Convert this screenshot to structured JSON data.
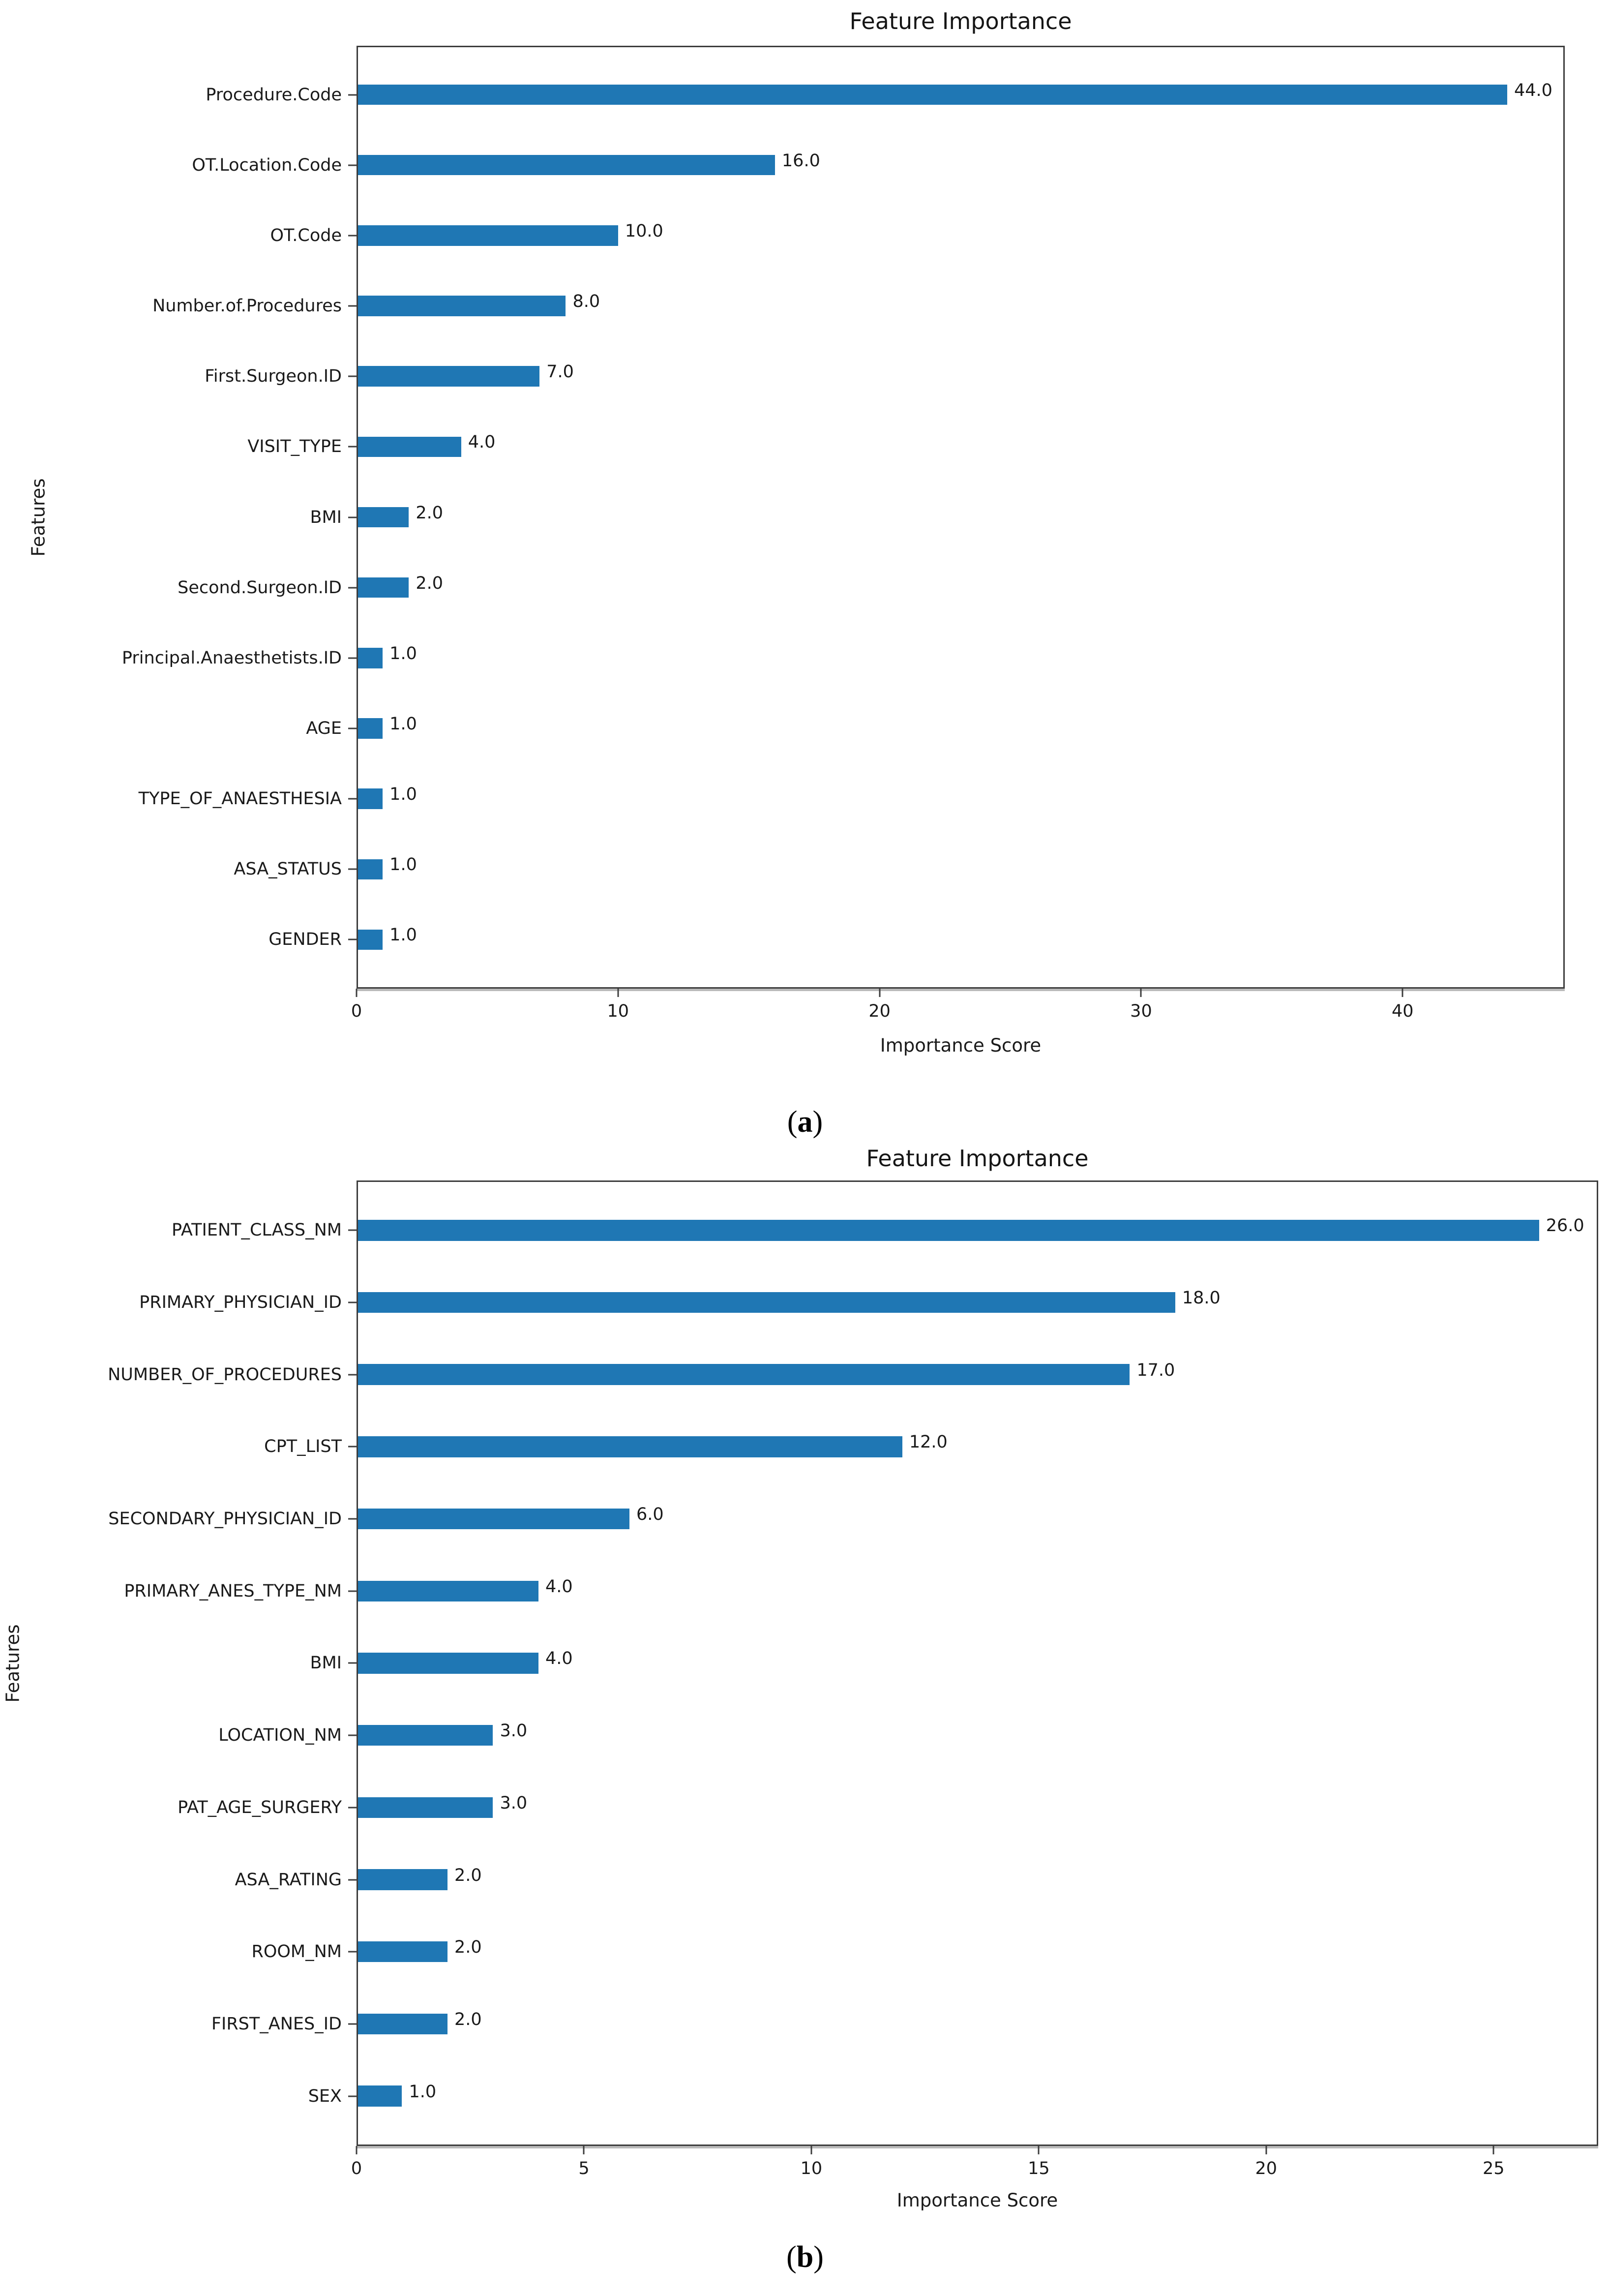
{
  "figure": {
    "background_color": "#ffffff",
    "bar_color": "#1f77b4",
    "spine_color": "#3d3d3d",
    "text_color": "#1a1a1a"
  },
  "chart_data": [
    {
      "type": "bar",
      "orientation": "horizontal",
      "title": "Feature Importance",
      "xlabel": "Importance Score",
      "ylabel": "Features",
      "caption": {
        "open": "(",
        "letter": "a",
        "close": ")"
      },
      "categories": [
        "Procedure.Code",
        "OT.Location.Code",
        "OT.Code",
        "Number.of.Procedures",
        "First.Surgeon.ID",
        "VISIT_TYPE",
        "BMI",
        "Second.Surgeon.ID",
        "Principal.Anaesthetists.ID",
        "AGE",
        "TYPE_OF_ANAESTHESIA",
        "ASA_STATUS",
        "GENDER"
      ],
      "values": [
        44,
        16,
        10,
        8,
        7,
        4,
        2,
        2,
        1,
        1,
        1,
        1,
        1
      ],
      "value_labels": [
        "44.0",
        "16.0",
        "10.0",
        "8.0",
        "7.0",
        "4.0",
        "2.0",
        "2.0",
        "1.0",
        "1.0",
        "1.0",
        "1.0",
        "1.0"
      ],
      "xticks": [
        0,
        10,
        20,
        30,
        40
      ],
      "xlim": [
        0,
        46.2
      ],
      "bar_color": "#1f77b4",
      "grid": false,
      "legend": null
    },
    {
      "type": "bar",
      "orientation": "horizontal",
      "title": "Feature Importance",
      "xlabel": "Importance Score",
      "ylabel": "Features",
      "caption": {
        "open": "(",
        "letter": "b",
        "close": ")"
      },
      "categories": [
        "PATIENT_CLASS_NM",
        "PRIMARY_PHYSICIAN_ID",
        "NUMBER_OF_PROCEDURES",
        "CPT_LIST",
        "SECONDARY_PHYSICIAN_ID",
        "PRIMARY_ANES_TYPE_NM",
        "BMI",
        "LOCATION_NM",
        "PAT_AGE_SURGERY",
        "ASA_RATING",
        "ROOM_NM",
        "FIRST_ANES_ID",
        "SEX"
      ],
      "values": [
        26,
        18,
        17,
        12,
        6,
        4,
        4,
        3,
        3,
        2,
        2,
        2,
        1
      ],
      "value_labels": [
        "26.0",
        "18.0",
        "17.0",
        "12.0",
        "6.0",
        "4.0",
        "4.0",
        "3.0",
        "3.0",
        "2.0",
        "2.0",
        "2.0",
        "1.0"
      ],
      "xticks": [
        0,
        5,
        10,
        15,
        20,
        25
      ],
      "xlim": [
        0,
        27.3
      ],
      "bar_color": "#1f77b4",
      "grid": false,
      "legend": null
    }
  ]
}
